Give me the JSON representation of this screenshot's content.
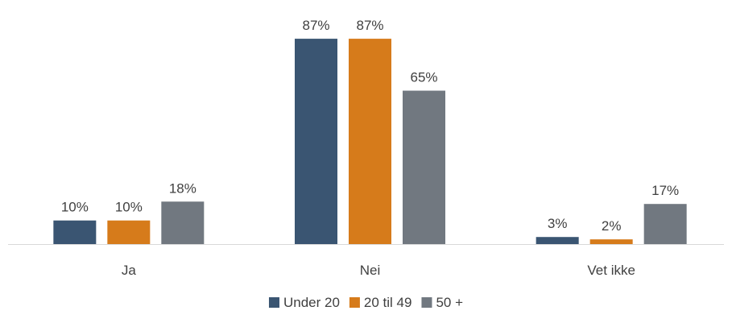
{
  "chart_data": {
    "type": "bar",
    "categories": [
      "Ja",
      "Nei",
      "Vet ikke"
    ],
    "series": [
      {
        "name": "Under 20",
        "values": [
          10,
          87,
          3
        ],
        "color": "#3a5572"
      },
      {
        "name": "20 til 49",
        "values": [
          10,
          87,
          2
        ],
        "color": "#d67b1b"
      },
      {
        "name": "50 +",
        "values": [
          18,
          65,
          17
        ],
        "color": "#717880"
      }
    ],
    "value_suffix": "%",
    "ylim": [
      0,
      100
    ],
    "grid": false,
    "legend_position": "bottom"
  }
}
